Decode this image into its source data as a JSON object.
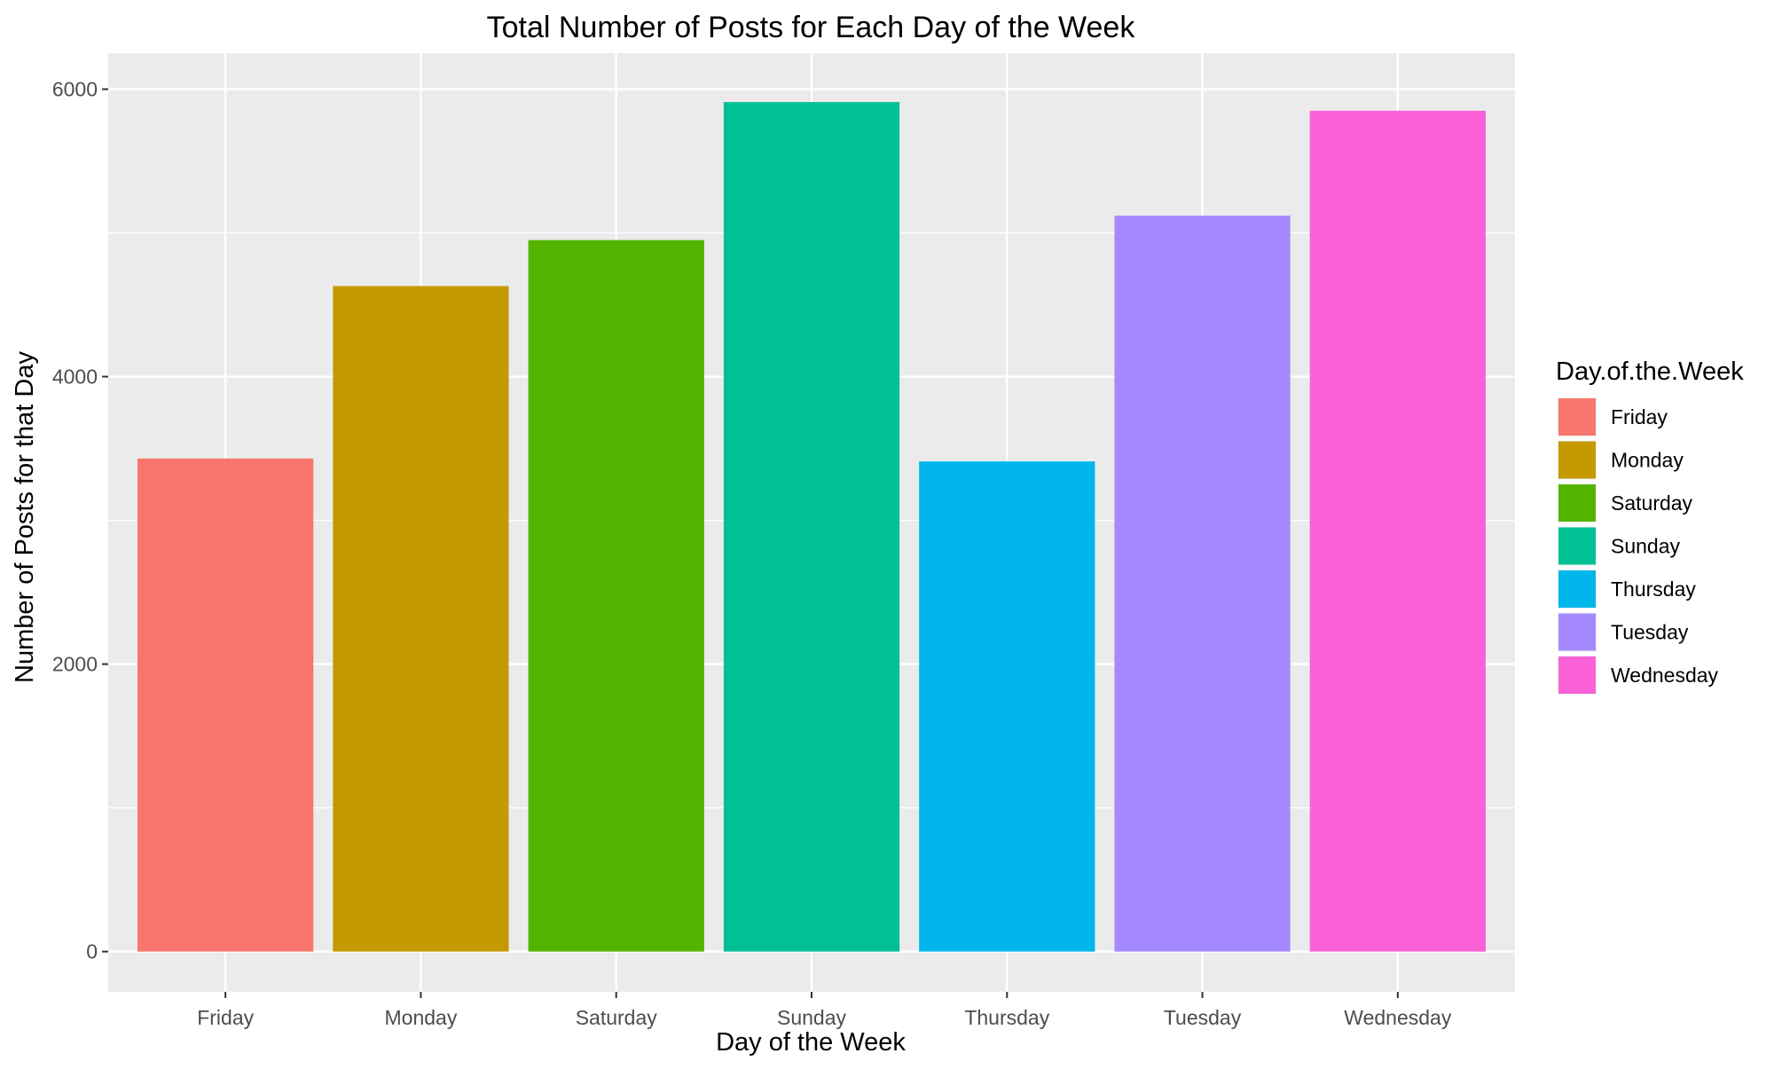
{
  "chart_data": {
    "type": "bar",
    "title": "Total Number of Posts for Each Day of the Week",
    "xlabel": "Day of the Week",
    "ylabel": "Number of Posts for that Day",
    "categories": [
      "Friday",
      "Monday",
      "Saturday",
      "Sunday",
      "Thursday",
      "Tuesday",
      "Wednesday"
    ],
    "values": [
      3430,
      4630,
      4950,
      5910,
      3410,
      5120,
      5850
    ],
    "colors": [
      "#F8766D",
      "#C49A00",
      "#53B400",
      "#00C094",
      "#00B6EB",
      "#A58AFF",
      "#FB61D7"
    ],
    "ylim": [
      -280,
      6250
    ],
    "yticks": [
      0,
      2000,
      4000,
      6000
    ],
    "ytick_labels": [
      "0",
      "2000",
      "4000",
      "6000"
    ],
    "grid": true,
    "legend": {
      "title": "Day.of.the.Week",
      "placement": "right",
      "entries": [
        "Friday",
        "Monday",
        "Saturday",
        "Sunday",
        "Thursday",
        "Tuesday",
        "Wednesday"
      ]
    }
  }
}
